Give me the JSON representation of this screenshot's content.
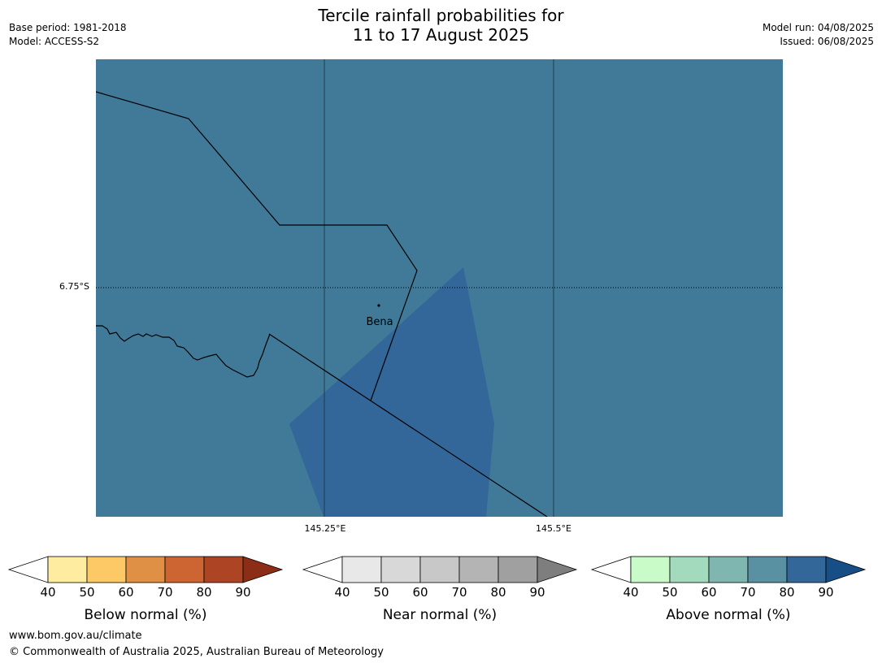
{
  "title": {
    "line1": "Tercile rainfall probabilities for",
    "line2": "11 to 17 August 2025"
  },
  "meta": {
    "base_period": "Base period: 1981-2018",
    "model": "Model: ACCESS-S2",
    "model_run": "Model run: 04/08/2025",
    "issued": "Issued: 06/08/2025"
  },
  "map": {
    "background_color": "#407a98",
    "above_normal_region_color": "#336699",
    "place_label": "Bena",
    "lat_label": "6.75°S",
    "lon_labels": [
      "145.25°E",
      "145.5°E"
    ]
  },
  "legends": [
    {
      "label": "Below normal (%)",
      "ticks": [
        "40",
        "50",
        "60",
        "70",
        "80",
        "90"
      ],
      "colors": [
        "#ffffff",
        "#feeda0",
        "#fdc966",
        "#e09044",
        "#cd6532",
        "#ad4525",
        "#8c2d17"
      ]
    },
    {
      "label": "Near normal (%)",
      "ticks": [
        "40",
        "50",
        "60",
        "70",
        "80",
        "90"
      ],
      "colors": [
        "#ffffff",
        "#e8e8e8",
        "#d8d8d8",
        "#c8c8c8",
        "#b4b4b4",
        "#a0a0a0",
        "#7e7e7e"
      ]
    },
    {
      "label": "Above normal (%)",
      "ticks": [
        "40",
        "50",
        "60",
        "70",
        "80",
        "90"
      ],
      "colors": [
        "#ffffff",
        "#c9fbc9",
        "#a3d9bd",
        "#80b6b0",
        "#5a91a2",
        "#336699",
        "#174e85"
      ]
    }
  ],
  "footer": {
    "url": "www.bom.gov.au/climate",
    "copyright": "© Commonwealth of Australia 2025, Australian Bureau of Meteorology"
  }
}
